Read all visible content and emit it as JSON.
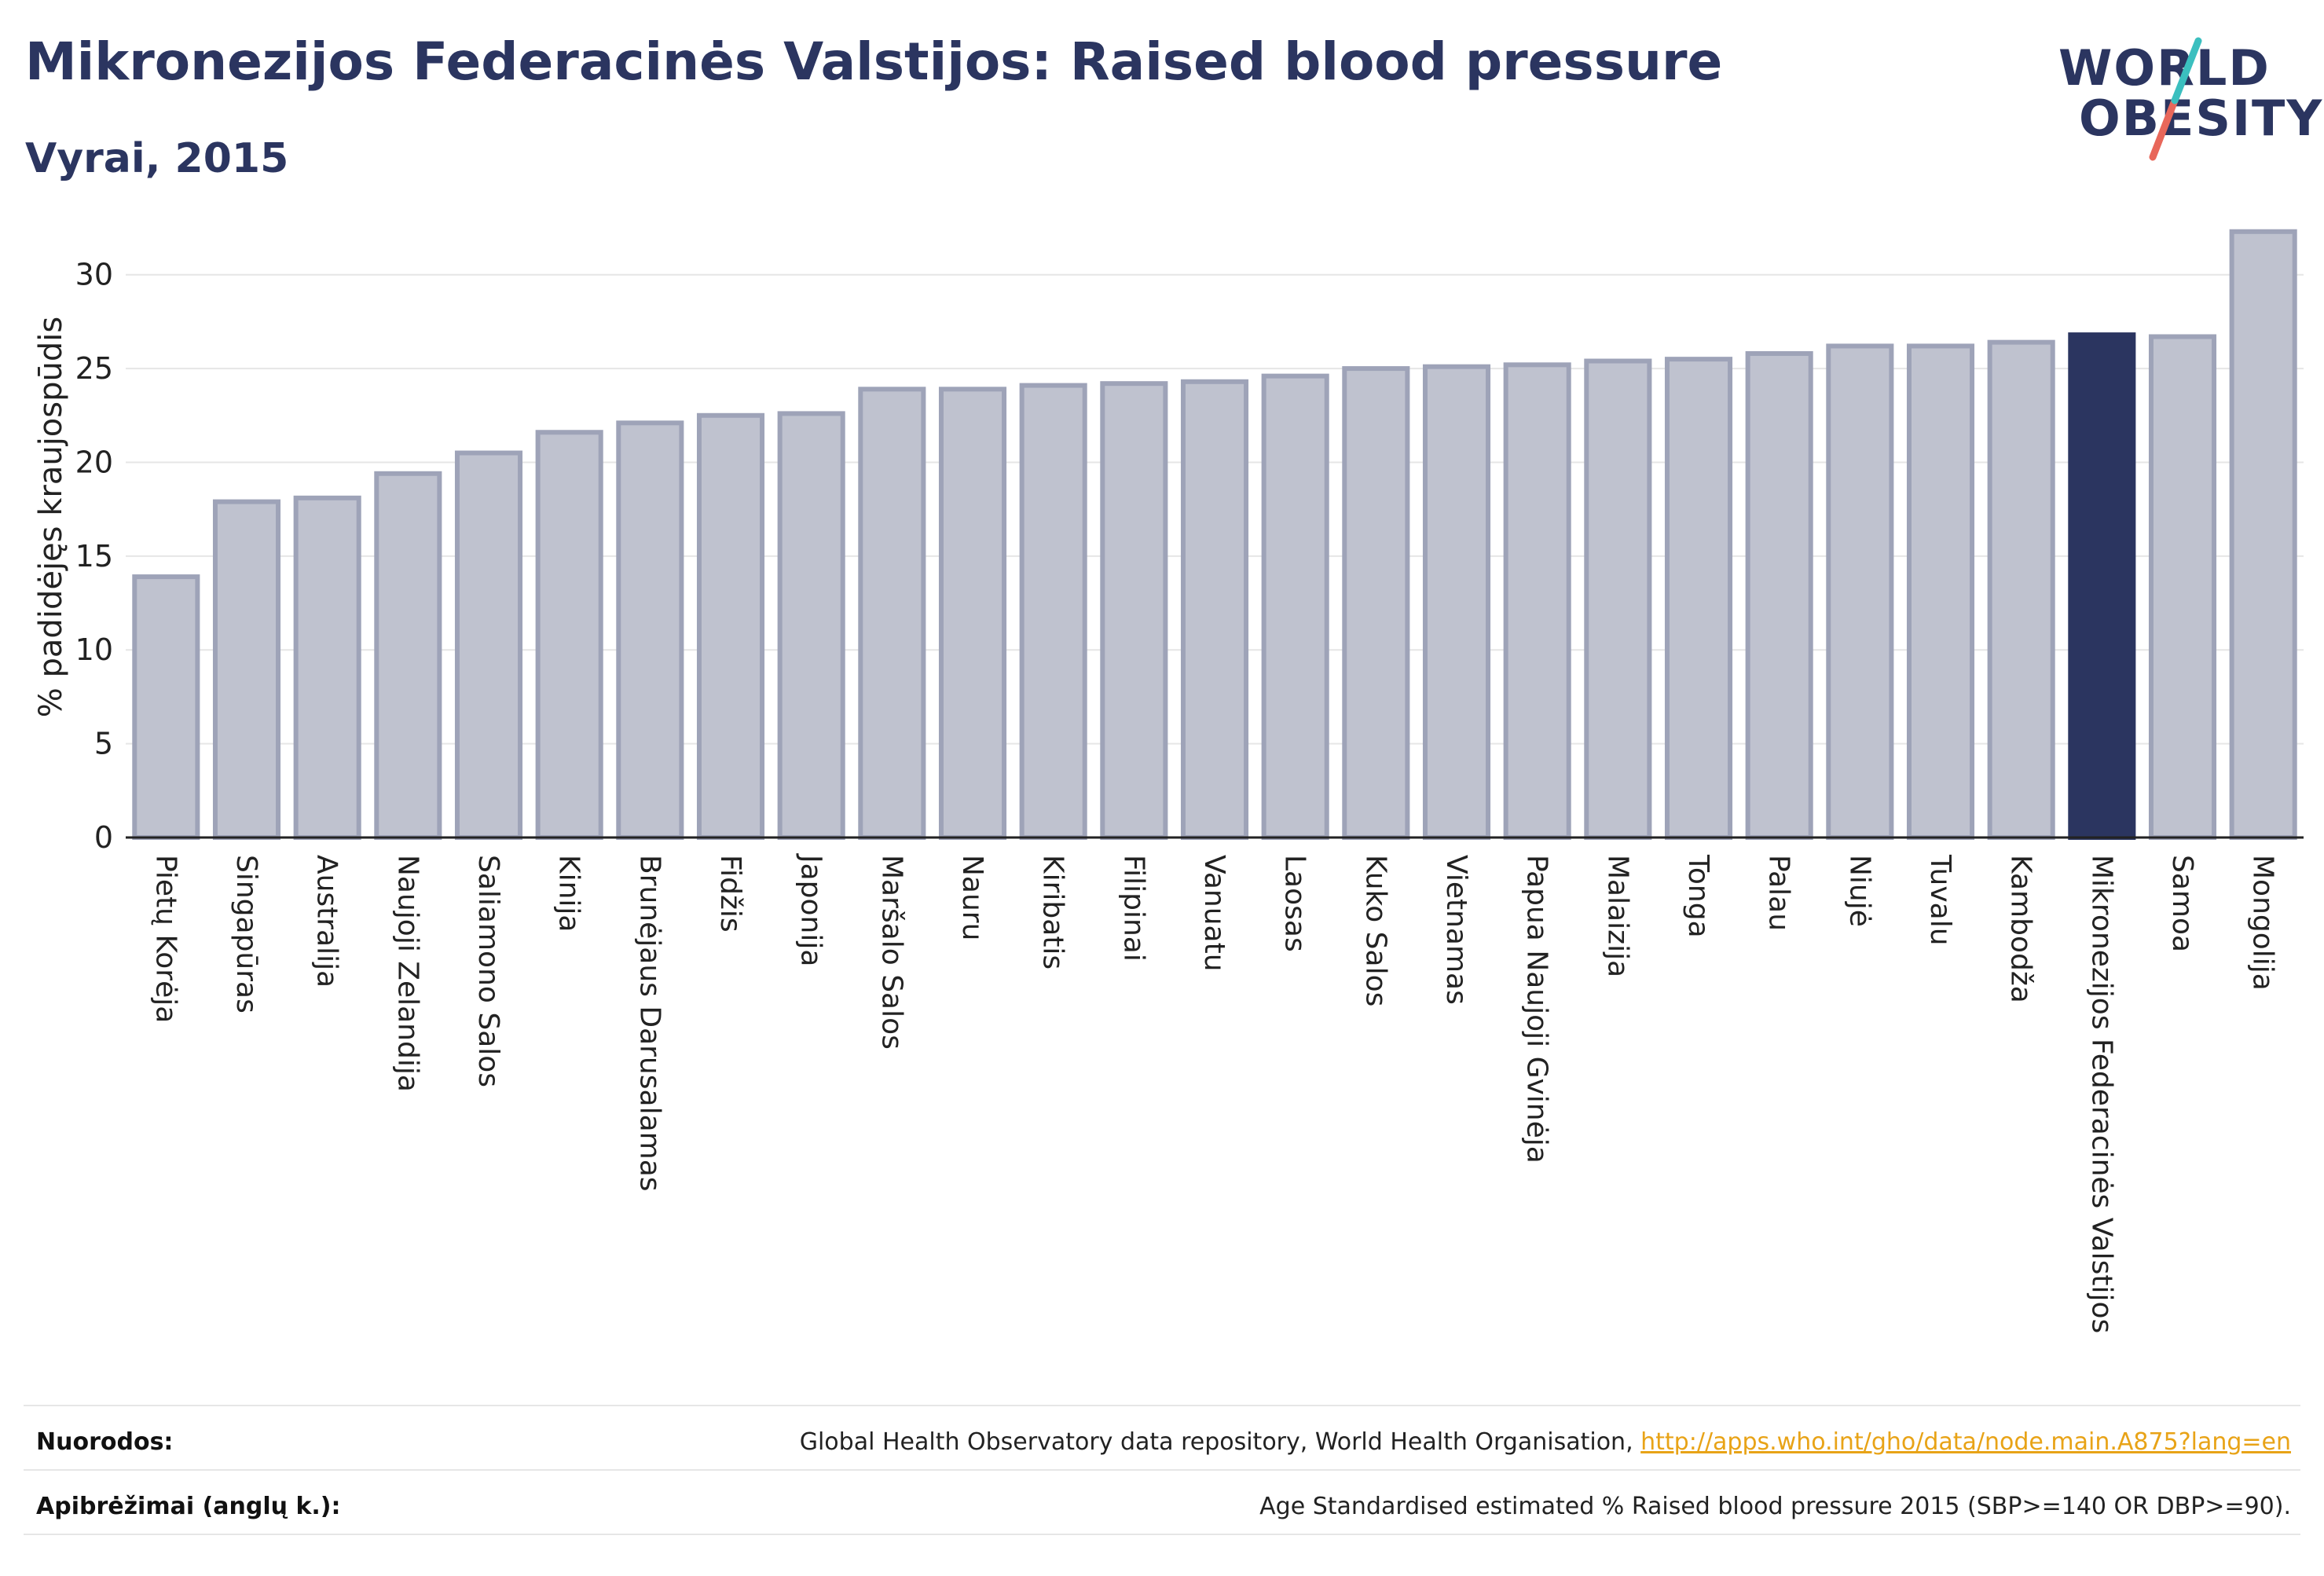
{
  "header": {
    "title": "Mikronezijos Federacinės Valstijos: Raised blood pressure",
    "subtitle": "Vyrai, 2015"
  },
  "logo": {
    "line1": "WORLD",
    "line2": "OBESITY",
    "accent_teal": "#3bbfbf",
    "accent_red": "#e8675a"
  },
  "colors": {
    "bar": "#bfc2cf",
    "bar_stroke": "#9ea3b8",
    "highlight": "#2b3560",
    "grid": "#e6e6e6"
  },
  "chart_data": {
    "type": "bar",
    "title": "Mikronezijos Federacinės Valstijos: Raised blood pressure",
    "subtitle": "Vyrai, 2015",
    "ylabel": "% padidėjęs kraujospūdis",
    "xlabel": "",
    "ylim": [
      0,
      32.5
    ],
    "yticks": [
      0,
      5,
      10,
      15,
      20,
      25,
      30
    ],
    "grid": true,
    "highlight": "Mikronezijos Federacinės Valstijos",
    "categories": [
      "Pietų Korėja",
      "Singapūras",
      "Australija",
      "Naujoji Zelandija",
      "Saliamono Salos",
      "Kinija",
      "Brunėjaus Darusalamas",
      "Fidžis",
      "Japonija",
      "Maršalo Salos",
      "Nauru",
      "Kiribatis",
      "Filipinai",
      "Vanuatu",
      "Laosas",
      "Kuko Salos",
      "Vietnamas",
      "Papua Naujoji Gvinėja",
      "Malaizija",
      "Tonga",
      "Palau",
      "Niujė",
      "Tuvalu",
      "Kambodža",
      "Mikronezijos Federacinės Valstijos",
      "Samoa",
      "Mongolija"
    ],
    "values": [
      13.9,
      17.9,
      18.1,
      19.4,
      20.5,
      21.6,
      22.1,
      22.5,
      22.6,
      23.9,
      23.9,
      24.1,
      24.2,
      24.3,
      24.6,
      25.0,
      25.1,
      25.2,
      25.4,
      25.5,
      25.8,
      26.2,
      26.2,
      26.4,
      26.8,
      26.7,
      32.3
    ]
  },
  "footer": {
    "sources_label": "Nuorodos:",
    "sources_text": "Global Health Observatory data repository, World Health Organisation, ",
    "sources_link": "http://apps.who.int/gho/data/node.main.A875?lang=en",
    "definitions_label": "Apibrėžimai (anglų k.):",
    "definitions_text": "Age Standardised estimated % Raised blood pressure 2015 (SBP>=140 OR DBP>=90)."
  }
}
